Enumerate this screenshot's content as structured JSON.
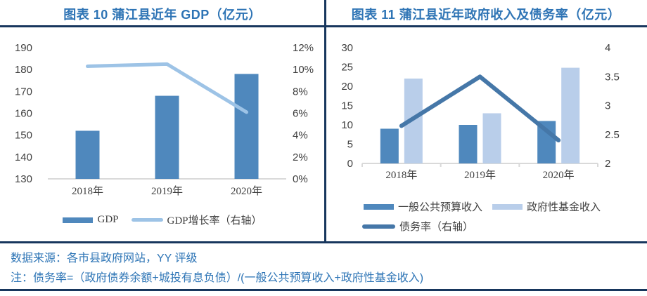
{
  "colors": {
    "title_blue": "#2E74B5",
    "navy_rule": "#17365D",
    "dark_bar": "#4F88BD",
    "light_bar": "#B9CEEA",
    "light_line": "#9DC3E6",
    "dark_line": "#4577A8",
    "axis_text": "#3F3F3F",
    "baseline_gray": "#D9D9D9",
    "note_blue": "#2E75B6"
  },
  "notes": {
    "source": "数据来源：各市县政府网站，YY 评级",
    "note": "注：债务率=（政府债券余额+城投有息负债）/(一般公共预算收入+政府性基金收入)"
  },
  "chart_data": [
    {
      "type": "bar",
      "title": "图表 10 蒲江县近年 GDP（亿元）",
      "categories": [
        "2018年",
        "2019年",
        "2020年"
      ],
      "series": [
        {
          "name": "GDP",
          "kind": "bar",
          "axis": "left",
          "color": "#4F88BD",
          "values": [
            152,
            168,
            178
          ]
        },
        {
          "name": "GDP增长率（右轴）",
          "kind": "line",
          "axis": "right",
          "color": "#9DC3E6",
          "values": [
            10.3,
            10.5,
            6.1
          ]
        }
      ],
      "left_axis": {
        "min": 130,
        "max": 190,
        "ticks": [
          "190",
          "180",
          "170",
          "160",
          "150",
          "140",
          "130"
        ]
      },
      "right_axis": {
        "min": 0,
        "max": 12,
        "ticks": [
          "12%",
          "10%",
          "8%",
          "6%",
          "4%",
          "2%",
          "0%"
        ]
      },
      "grid": false,
      "legend_position": "bottom"
    },
    {
      "type": "bar",
      "title": "图表 11 蒲江县近年政府收入及债务率（亿元）",
      "categories": [
        "2018年",
        "2019年",
        "2020年"
      ],
      "series": [
        {
          "name": "一般公共预算收入",
          "kind": "bar",
          "axis": "left",
          "color": "#4F88BD",
          "values": [
            9,
            10,
            11
          ]
        },
        {
          "name": "政府性基金收入",
          "kind": "bar",
          "axis": "left",
          "color": "#B9CEEA",
          "values": [
            22,
            13,
            24.8
          ]
        },
        {
          "name": "债务率（右轴）",
          "kind": "line",
          "axis": "right",
          "color": "#4577A8",
          "values": [
            2.65,
            3.5,
            2.4
          ]
        }
      ],
      "left_axis": {
        "min": 0,
        "max": 30,
        "ticks": [
          "30",
          "25",
          "20",
          "15",
          "10",
          "5",
          "0"
        ]
      },
      "right_axis": {
        "min": 2,
        "max": 4,
        "ticks": [
          "4",
          "3.5",
          "3",
          "2.5",
          "2"
        ]
      },
      "grid": false,
      "legend_position": "bottom"
    }
  ]
}
